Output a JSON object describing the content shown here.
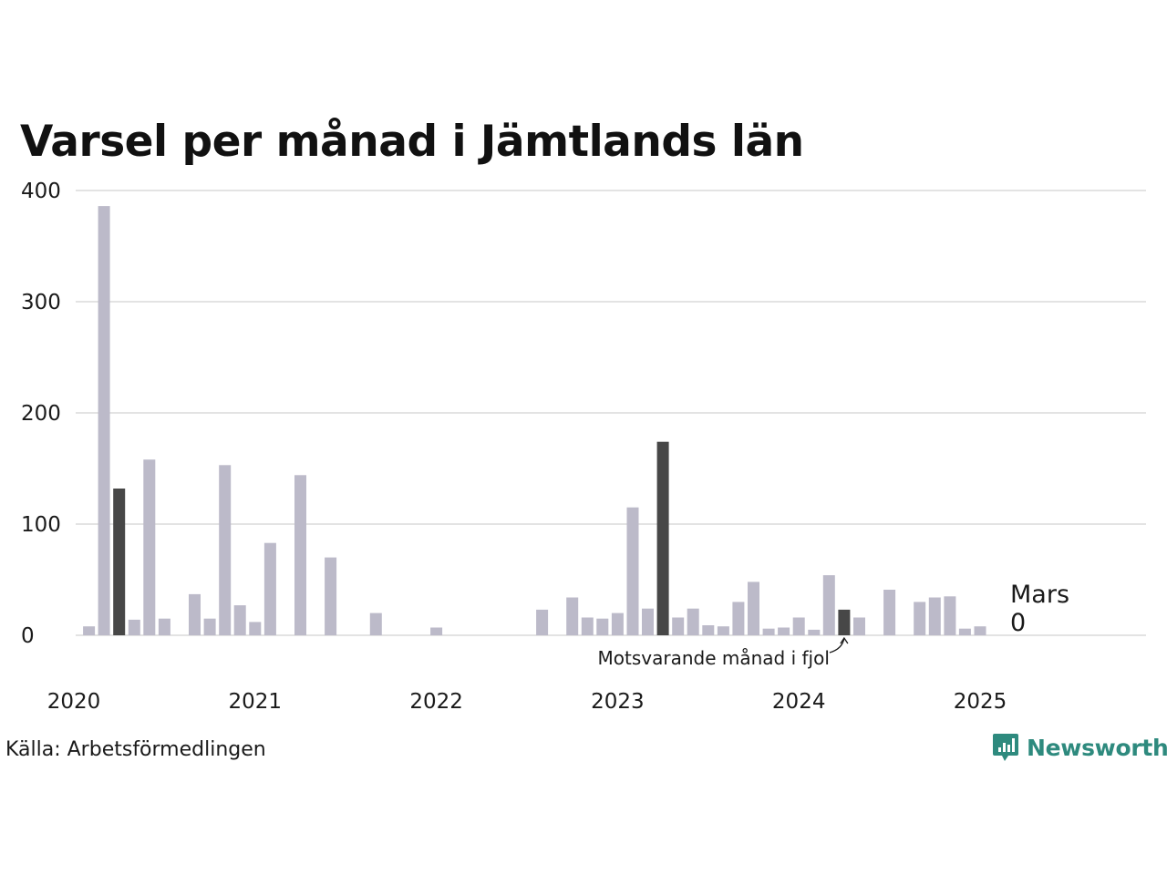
{
  "chart_data": {
    "type": "bar",
    "title": "Varsel per månad i Jämtlands län",
    "ylim": [
      0,
      400
    ],
    "y_ticks": [
      0,
      100,
      200,
      300,
      400
    ],
    "x_tick_labels": [
      "2020",
      "2021",
      "2022",
      "2023",
      "2024",
      "2025"
    ],
    "grid": "horizontal",
    "start_month": "2020-01",
    "months": [
      "2020-01",
      "2020-02",
      "2020-03",
      "2020-04",
      "2020-05",
      "2020-06",
      "2020-07",
      "2020-08",
      "2020-09",
      "2020-10",
      "2020-11",
      "2020-12",
      "2021-01",
      "2021-02",
      "2021-03",
      "2021-04",
      "2021-05",
      "2021-06",
      "2021-07",
      "2021-08",
      "2021-09",
      "2021-10",
      "2021-11",
      "2021-12",
      "2022-01",
      "2022-02",
      "2022-03",
      "2022-04",
      "2022-05",
      "2022-06",
      "2022-07",
      "2022-08",
      "2022-09",
      "2022-10",
      "2022-11",
      "2022-12",
      "2023-01",
      "2023-02",
      "2023-03",
      "2023-04",
      "2023-05",
      "2023-06",
      "2023-07",
      "2023-08",
      "2023-09",
      "2023-10",
      "2023-11",
      "2023-12",
      "2024-01",
      "2024-02",
      "2024-03",
      "2024-04",
      "2024-05",
      "2024-06",
      "2024-07",
      "2024-08",
      "2024-09",
      "2024-10",
      "2024-11",
      "2024-12",
      "2025-01",
      "2025-02",
      "2025-03"
    ],
    "values": [
      8,
      386,
      132,
      14,
      158,
      15,
      0,
      37,
      15,
      153,
      27,
      12,
      83,
      0,
      144,
      0,
      70,
      0,
      0,
      20,
      0,
      0,
      0,
      7,
      0,
      0,
      0,
      0,
      0,
      0,
      23,
      0,
      34,
      16,
      15,
      20,
      115,
      24,
      174,
      16,
      24,
      9,
      8,
      30,
      48,
      6,
      7,
      16,
      5,
      54,
      23,
      16,
      0,
      41,
      0,
      30,
      34,
      35,
      6,
      8,
      0,
      0,
      0
    ],
    "highlighted_months": [
      "2020-03",
      "2023-03",
      "2024-03"
    ],
    "colors": {
      "bar": "#bcbac9",
      "highlight": "#474747",
      "grid": "#e3e3e3"
    },
    "annotation": {
      "text": "Motsvarande månad i fjol",
      "month": "2024-03"
    },
    "latest": {
      "month_label": "Mars",
      "value_label": "0"
    }
  },
  "footer": {
    "source": "Källa: Arbetsförmedlingen",
    "brand": "Newsworthy",
    "brand_icon": "bar-chart-speech-bubble-icon",
    "brand_color": "#2e8a7e"
  }
}
